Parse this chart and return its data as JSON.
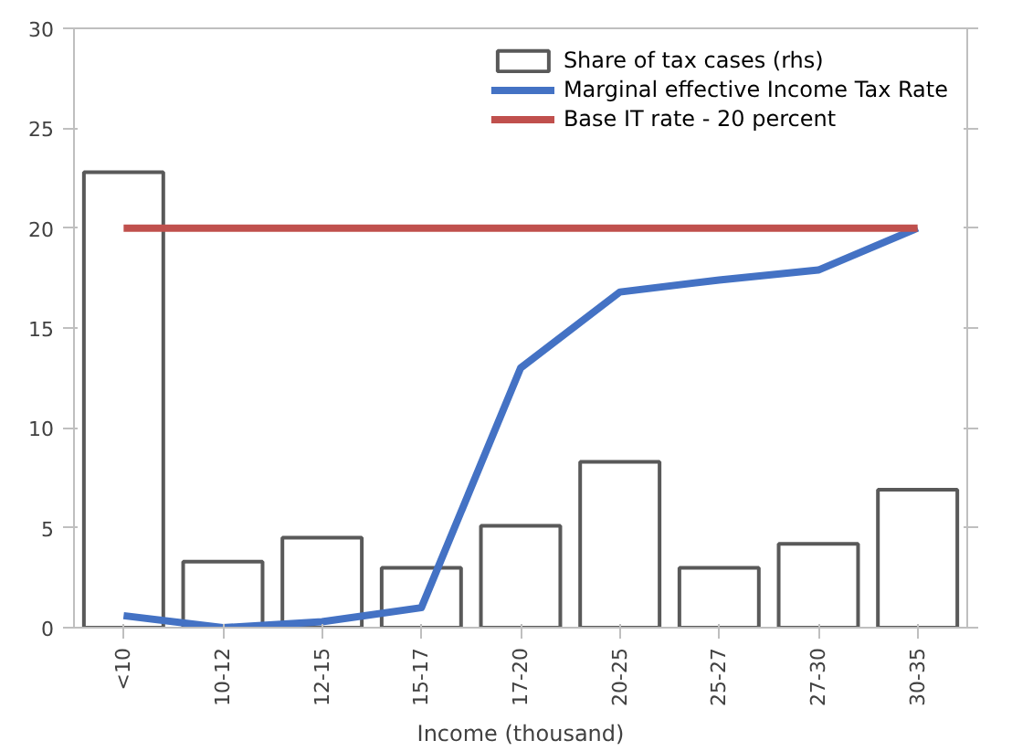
{
  "chart_data": {
    "type": "bar",
    "xlabel": "Income (thousand)",
    "categories": [
      "<10",
      "10-12",
      "12-15",
      "15-17",
      "17-20",
      "20-25",
      "25-27",
      "27-30",
      "30-35"
    ],
    "series": [
      {
        "name": "Share of tax cases (rhs)",
        "color": "#ffffff",
        "values": [
          22.8,
          3.3,
          4.5,
          3.0,
          5.1,
          8.3,
          3.0,
          4.2,
          6.9
        ]
      },
      {
        "name": "Marginal effective Income Tax Rate",
        "type": "line",
        "color": "#4472c4",
        "values": [
          0.6,
          0.0,
          0.3,
          1.0,
          13.0,
          16.8,
          17.4,
          17.9,
          20.0
        ]
      },
      {
        "name": "Base IT rate - 20 percent",
        "type": "line",
        "color": "#c0504d",
        "values": [
          20,
          20,
          20,
          20,
          20,
          20,
          20,
          20,
          20
        ]
      }
    ],
    "ylim": [
      0,
      30
    ],
    "yticks": [
      0,
      5,
      10,
      15,
      20,
      25,
      30
    ],
    "grid": false,
    "legend": "top right",
    "marker": "none",
    "line_style": "solid"
  }
}
